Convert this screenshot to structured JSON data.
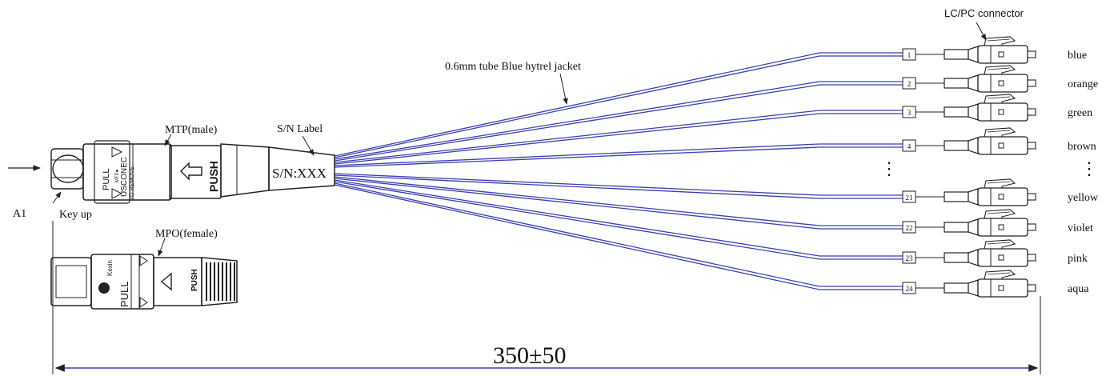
{
  "labels": {
    "lc_connector": "LC/PC connector",
    "tube": "0.6mm tube Blue hytrel jacket",
    "mtp": "MTP(male)",
    "sn_label": "S/N Label",
    "sn_text": "S/N:XXX",
    "a1": "A1",
    "key_up": "Key up",
    "mpo": "MPO(female)",
    "dimension": "350±50",
    "vertical_ellipsis": "⋮"
  },
  "mtp_body": {
    "pull": "PULL",
    "mtp_mark": "MTP●",
    "usconec": "USCONEC",
    "to_remove": "TO REMOVE",
    "push": "PUSH"
  },
  "mpo_body": {
    "brand": "Kexin",
    "pull": "PULL",
    "push": "PUSH"
  },
  "fibers": [
    {
      "number": "1",
      "color": "blue"
    },
    {
      "number": "2",
      "color": "orange"
    },
    {
      "number": "3",
      "color": "green"
    },
    {
      "number": "4",
      "color": "brown"
    },
    {
      "number": "21",
      "color": "yellow"
    },
    {
      "number": "22",
      "color": "violet"
    },
    {
      "number": "23",
      "color": "pink"
    },
    {
      "number": "24",
      "color": "aqua"
    }
  ],
  "colors": {
    "fiber_line": "#3b3fb3",
    "outline": "#222222",
    "background": "#ffffff"
  }
}
